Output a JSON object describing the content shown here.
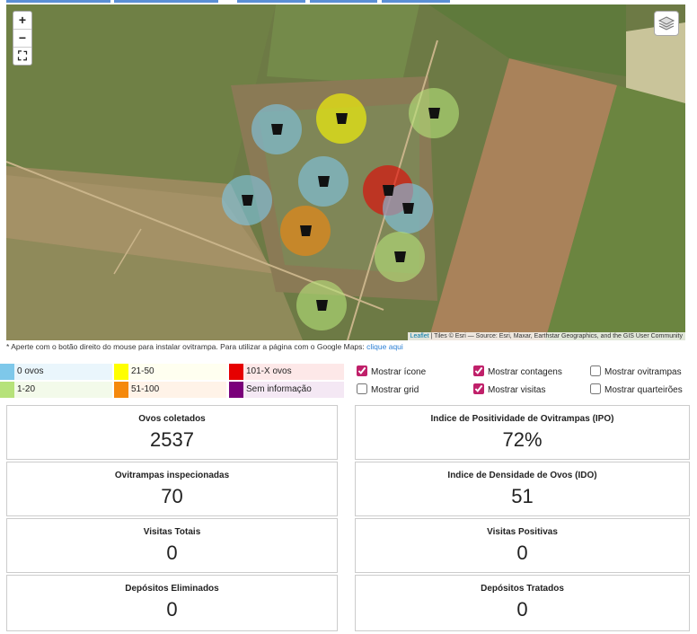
{
  "map": {
    "zoom_in": "+",
    "zoom_out": "−",
    "attribution_link": "Leaflet",
    "attribution": " | Tiles © Esri — Source: Esri, Maxar, Earthstar Geographics, and the GIS User Community"
  },
  "note": {
    "text": "* Aperte com o botão direito do mouse para instalar ovitrampa. Para utilizar a página com o Google Maps:",
    "link": "clique aqui"
  },
  "legend": [
    {
      "label": "0 ovos",
      "color": "#7ec8ea",
      "background": "#eaf6fc"
    },
    {
      "label": "1-20",
      "color": "#b6e27a",
      "background": "#f3faea"
    },
    {
      "label": "21-50",
      "color": "#ffff00",
      "background": "#fffff0"
    },
    {
      "label": "51-100",
      "color": "#f5890c",
      "background": "#fff3e8"
    },
    {
      "label": "101-X ovos",
      "color": "#e60000",
      "background": "#fde8e8"
    },
    {
      "label": "Sem informação",
      "color": "#7a007a",
      "background": "#f4e8f4"
    }
  ],
  "options": [
    {
      "label": "Mostrar ícone",
      "checked": true
    },
    {
      "label": "Mostrar grid",
      "checked": false
    },
    {
      "label": "Mostrar contagens",
      "checked": true
    },
    {
      "label": "Mostrar visitas",
      "checked": true
    },
    {
      "label": "Mostrar ovitrampas",
      "checked": false
    },
    {
      "label": "Mostrar quarteirões",
      "checked": false
    }
  ],
  "cards": [
    {
      "label": "Ovos coletados",
      "value": 2537
    },
    {
      "label": "Indice de Positividade de Ovitrampas (IPO)",
      "value": "72%"
    },
    {
      "label": "Ovitrampas inspecionadas",
      "value": 70
    },
    {
      "label": "Indice de Densidade de Ovos (IDO)",
      "value": 51
    },
    {
      "label": "Visitas Totais",
      "value": 0
    },
    {
      "label": "Visitas Positivas",
      "value": 0
    },
    {
      "label": "Depósitos Eliminados",
      "value": 0
    },
    {
      "label": "Depósitos Tratados",
      "value": 0
    }
  ]
}
